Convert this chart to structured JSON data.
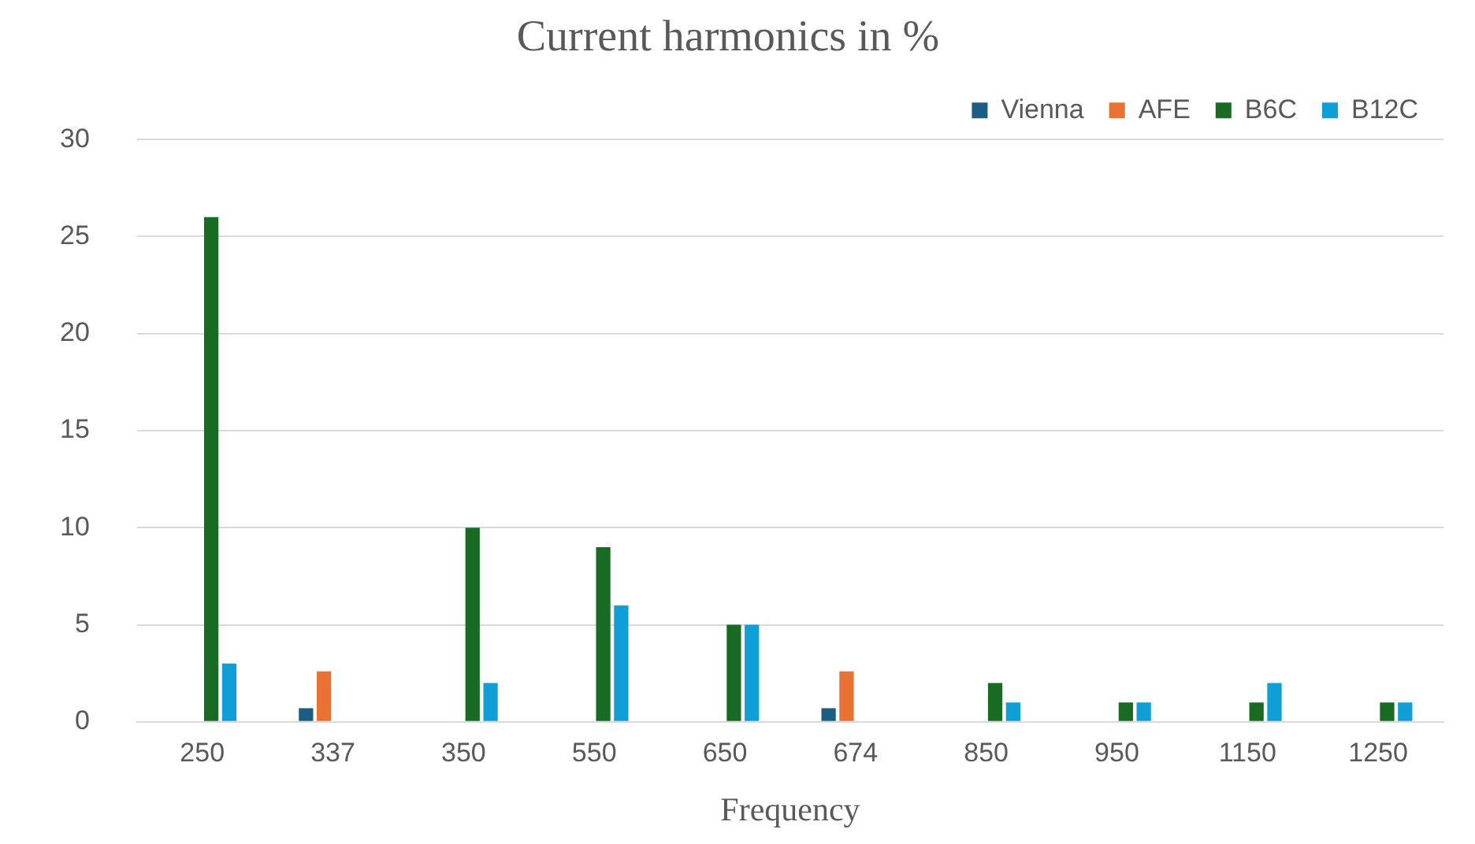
{
  "chart_data": {
    "type": "bar",
    "title": "Current harmonics in %",
    "xlabel": "Frequency",
    "categories": [
      "250",
      "337",
      "350",
      "550",
      "650",
      "674",
      "850",
      "950",
      "1150",
      "1250"
    ],
    "series": [
      {
        "name": "Vienna",
        "color": "#1b5e82",
        "values": [
          null,
          0.7,
          null,
          null,
          null,
          0.7,
          null,
          null,
          null,
          null
        ]
      },
      {
        "name": "AFE",
        "color": "#e97132",
        "values": [
          null,
          2.6,
          null,
          null,
          null,
          2.6,
          null,
          null,
          null,
          null
        ]
      },
      {
        "name": "B6C",
        "color": "#196b24",
        "values": [
          26,
          null,
          10,
          9,
          5,
          null,
          2,
          1,
          1,
          1
        ]
      },
      {
        "name": "B12C",
        "color": "#0f9ed5",
        "values": [
          3,
          null,
          2,
          6,
          5,
          null,
          1,
          1,
          2,
          1
        ]
      }
    ],
    "ylim": [
      0,
      30
    ],
    "yticks": [
      0,
      5,
      10,
      15,
      20,
      25,
      30
    ],
    "grid": "y",
    "legend": "top right"
  }
}
